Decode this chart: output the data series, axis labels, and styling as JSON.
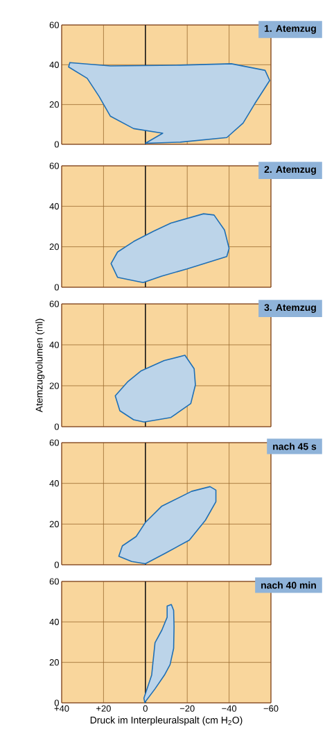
{
  "chart_data": [
    {
      "type": "area",
      "title": "1. Atemzug",
      "xlim": [
        40,
        -60
      ],
      "ylim": [
        0,
        60
      ],
      "xticks": [
        {
          "value": 40,
          "label": null
        },
        {
          "value": 20,
          "label": null
        },
        {
          "value": 0,
          "label": null
        },
        {
          "value": -20,
          "label": null
        },
        {
          "value": -40,
          "label": null
        },
        {
          "value": -60,
          "label": null
        }
      ],
      "yticks": [
        0,
        20,
        40,
        60
      ],
      "grid": true,
      "tick_labels": "y",
      "ref_lines": [
        {
          "axis": "x",
          "value": 0,
          "color": "#1a1a1a"
        }
      ],
      "series": [
        {
          "color": "#1f6fb5",
          "x": [
            0,
            -16.7,
            -38.9,
            -46.7,
            -52.2,
            -59.4,
            -57.2,
            -41.1,
            -16.7,
            16.7,
            36.1,
            36.7,
            27.8,
            22.2,
            16.7,
            5.6,
            -8.3
          ],
          "values": [
            0.5,
            1.1,
            3.4,
            10.7,
            20.3,
            32.1,
            37.2,
            40.5,
            39.8,
            39.4,
            41.1,
            38.9,
            33.2,
            24.2,
            14.1,
            7.9,
            5.6
          ]
        }
      ]
    },
    {
      "type": "area",
      "title": "2. Atemzug",
      "xlim": [
        40,
        -60
      ],
      "ylim": [
        0,
        60
      ],
      "xticks": [
        {
          "value": 40,
          "label": null
        },
        {
          "value": 20,
          "label": null
        },
        {
          "value": 0,
          "label": null
        },
        {
          "value": -20,
          "label": null
        },
        {
          "value": -40,
          "label": null
        },
        {
          "value": -60,
          "label": null
        }
      ],
      "yticks": [
        0,
        20,
        40,
        60
      ],
      "grid": true,
      "tick_labels": "y",
      "ref_lines": [
        {
          "axis": "x",
          "value": 0,
          "color": "#1a1a1a"
        }
      ],
      "series": [
        {
          "color": "#1f6fb5",
          "x": [
            -7.8,
            -20,
            -38.9,
            -40,
            -37.8,
            -32.8,
            -27.8,
            -12.2,
            -3.9,
            5.6,
            13.3,
            16.4,
            13.3,
            1.1
          ],
          "values": [
            5.5,
            9.1,
            15.2,
            19.2,
            28.3,
            35.7,
            36.3,
            31.7,
            27.7,
            22.6,
            17.4,
            11.7,
            4.9,
            2.3
          ]
        }
      ]
    },
    {
      "type": "area",
      "title": "3. Atemzug",
      "ylabel": "Atemzugvolumen (ml)",
      "xlim": [
        40,
        -60
      ],
      "ylim": [
        0,
        60
      ],
      "xticks": [
        {
          "value": 40,
          "label": null
        },
        {
          "value": 20,
          "label": null
        },
        {
          "value": 0,
          "label": null
        },
        {
          "value": -20,
          "label": null
        },
        {
          "value": -40,
          "label": null
        },
        {
          "value": -60,
          "label": null
        }
      ],
      "yticks": [
        0,
        20,
        40,
        60
      ],
      "grid": true,
      "tick_labels": "y",
      "ref_lines": [
        {
          "axis": "x",
          "value": 0,
          "color": "#1a1a1a"
        }
      ],
      "series": [
        {
          "color": "#1f6fb5",
          "x": [
            0.6,
            -12.2,
            -21.7,
            -23.9,
            -23.3,
            -18.9,
            -8.9,
            2.2,
            8.3,
            14.4,
            12.2,
            5.6
          ],
          "values": [
            2.3,
            4.5,
            11.3,
            20.4,
            28.3,
            34.9,
            32.3,
            27.2,
            22.1,
            15.1,
            7.8,
            3.4
          ]
        }
      ]
    },
    {
      "type": "area",
      "title": "nach 45 s",
      "xlim": [
        40,
        -60
      ],
      "ylim": [
        0,
        60
      ],
      "xticks": [
        {
          "value": 40,
          "label": null
        },
        {
          "value": 20,
          "label": null
        },
        {
          "value": 0,
          "label": null
        },
        {
          "value": -20,
          "label": null
        },
        {
          "value": -40,
          "label": null
        },
        {
          "value": -60,
          "label": null
        }
      ],
      "yticks": [
        0,
        20,
        40,
        60
      ],
      "grid": true,
      "tick_labels": "y",
      "ref_lines": [
        {
          "axis": "x",
          "value": 0,
          "color": "#1a1a1a"
        }
      ],
      "series": [
        {
          "color": "#1f6fb5",
          "x": [
            0,
            -9.9,
            -21,
            -28.7,
            -33.7,
            -33.7,
            -30.9,
            -22.1,
            -7.7,
            0,
            4.4,
            11,
            12.7,
            6.6
          ],
          "values": [
            0.5,
            5.9,
            12.1,
            21.9,
            31,
            36.7,
            38.4,
            36.1,
            28.7,
            20.8,
            13.9,
            9.3,
            4.2,
            1.6
          ]
        }
      ]
    },
    {
      "type": "area",
      "title": "nach 40 min",
      "xlabel": "Druck im Interpleuralspalt (cm H$_{2}$O)",
      "xlim": [
        40,
        -60
      ],
      "ylim": [
        0,
        60
      ],
      "xticks": [
        {
          "value": 40,
          "label": "+40"
        },
        {
          "value": 20,
          "label": "+20"
        },
        0,
        {
          "value": -20,
          "label": "−20"
        },
        {
          "value": -40,
          "label": "−40"
        },
        {
          "value": -60,
          "label": "−60"
        }
      ],
      "yticks": [
        0,
        20,
        40,
        60
      ],
      "grid": true,
      "ref_lines": [
        {
          "axis": "x",
          "value": 0,
          "color": "#1a1a1a"
        }
      ],
      "series": [
        {
          "color": "#1f6fb5",
          "x": [
            0.3,
            -4.6,
            -9.1,
            -11.8,
            -13.5,
            -13.7,
            -13.5,
            -12.4,
            -10.4,
            -10.4,
            -7.9,
            -4.6,
            -3.8,
            -3,
            0.7
          ],
          "values": [
            0.2,
            6.9,
            13.7,
            18.9,
            26.9,
            37.7,
            45.7,
            48.6,
            47.8,
            42.3,
            36,
            29.7,
            21.7,
            13.7,
            2.3
          ]
        }
      ]
    }
  ]
}
